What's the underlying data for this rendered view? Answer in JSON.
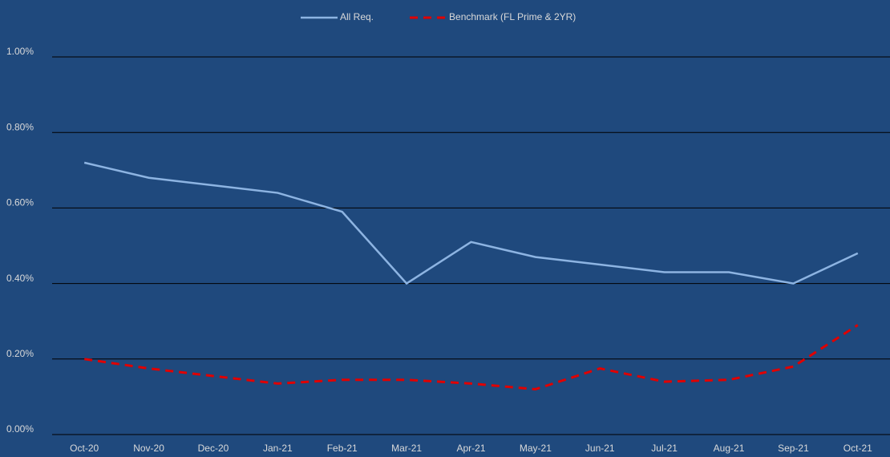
{
  "chart_data": {
    "type": "line",
    "categories": [
      "Oct-20",
      "Nov-20",
      "Dec-20",
      "Jan-21",
      "Feb-21",
      "Mar-21",
      "Apr-21",
      "May-21",
      "Jun-21",
      "Jul-21",
      "Aug-21",
      "Sep-21",
      "Oct-21"
    ],
    "series": [
      {
        "name": "All Req.",
        "color": "#8db4e2",
        "dashed": false,
        "values": [
          0.72,
          0.68,
          0.66,
          0.64,
          0.59,
          0.4,
          0.51,
          0.47,
          0.45,
          0.43,
          0.43,
          0.4,
          0.48
        ]
      },
      {
        "name": "Benchmark (FL Prime & 2YR)",
        "color": "#e00000",
        "dashed": true,
        "values": [
          0.2,
          0.175,
          0.155,
          0.135,
          0.145,
          0.145,
          0.135,
          0.12,
          0.175,
          0.14,
          0.145,
          0.18,
          0.29
        ]
      }
    ],
    "ylim": [
      0,
      1
    ],
    "yticks": [
      {
        "value": 0,
        "label": "0.00%"
      },
      {
        "value": 0.2,
        "label": "0.20%"
      },
      {
        "value": 0.4,
        "label": "0.40%"
      },
      {
        "value": 0.6,
        "label": "0.60%"
      },
      {
        "value": 0.8,
        "label": "0.80%"
      },
      {
        "value": 1,
        "label": "1.00%"
      }
    ],
    "grid": true,
    "legend": "top"
  }
}
